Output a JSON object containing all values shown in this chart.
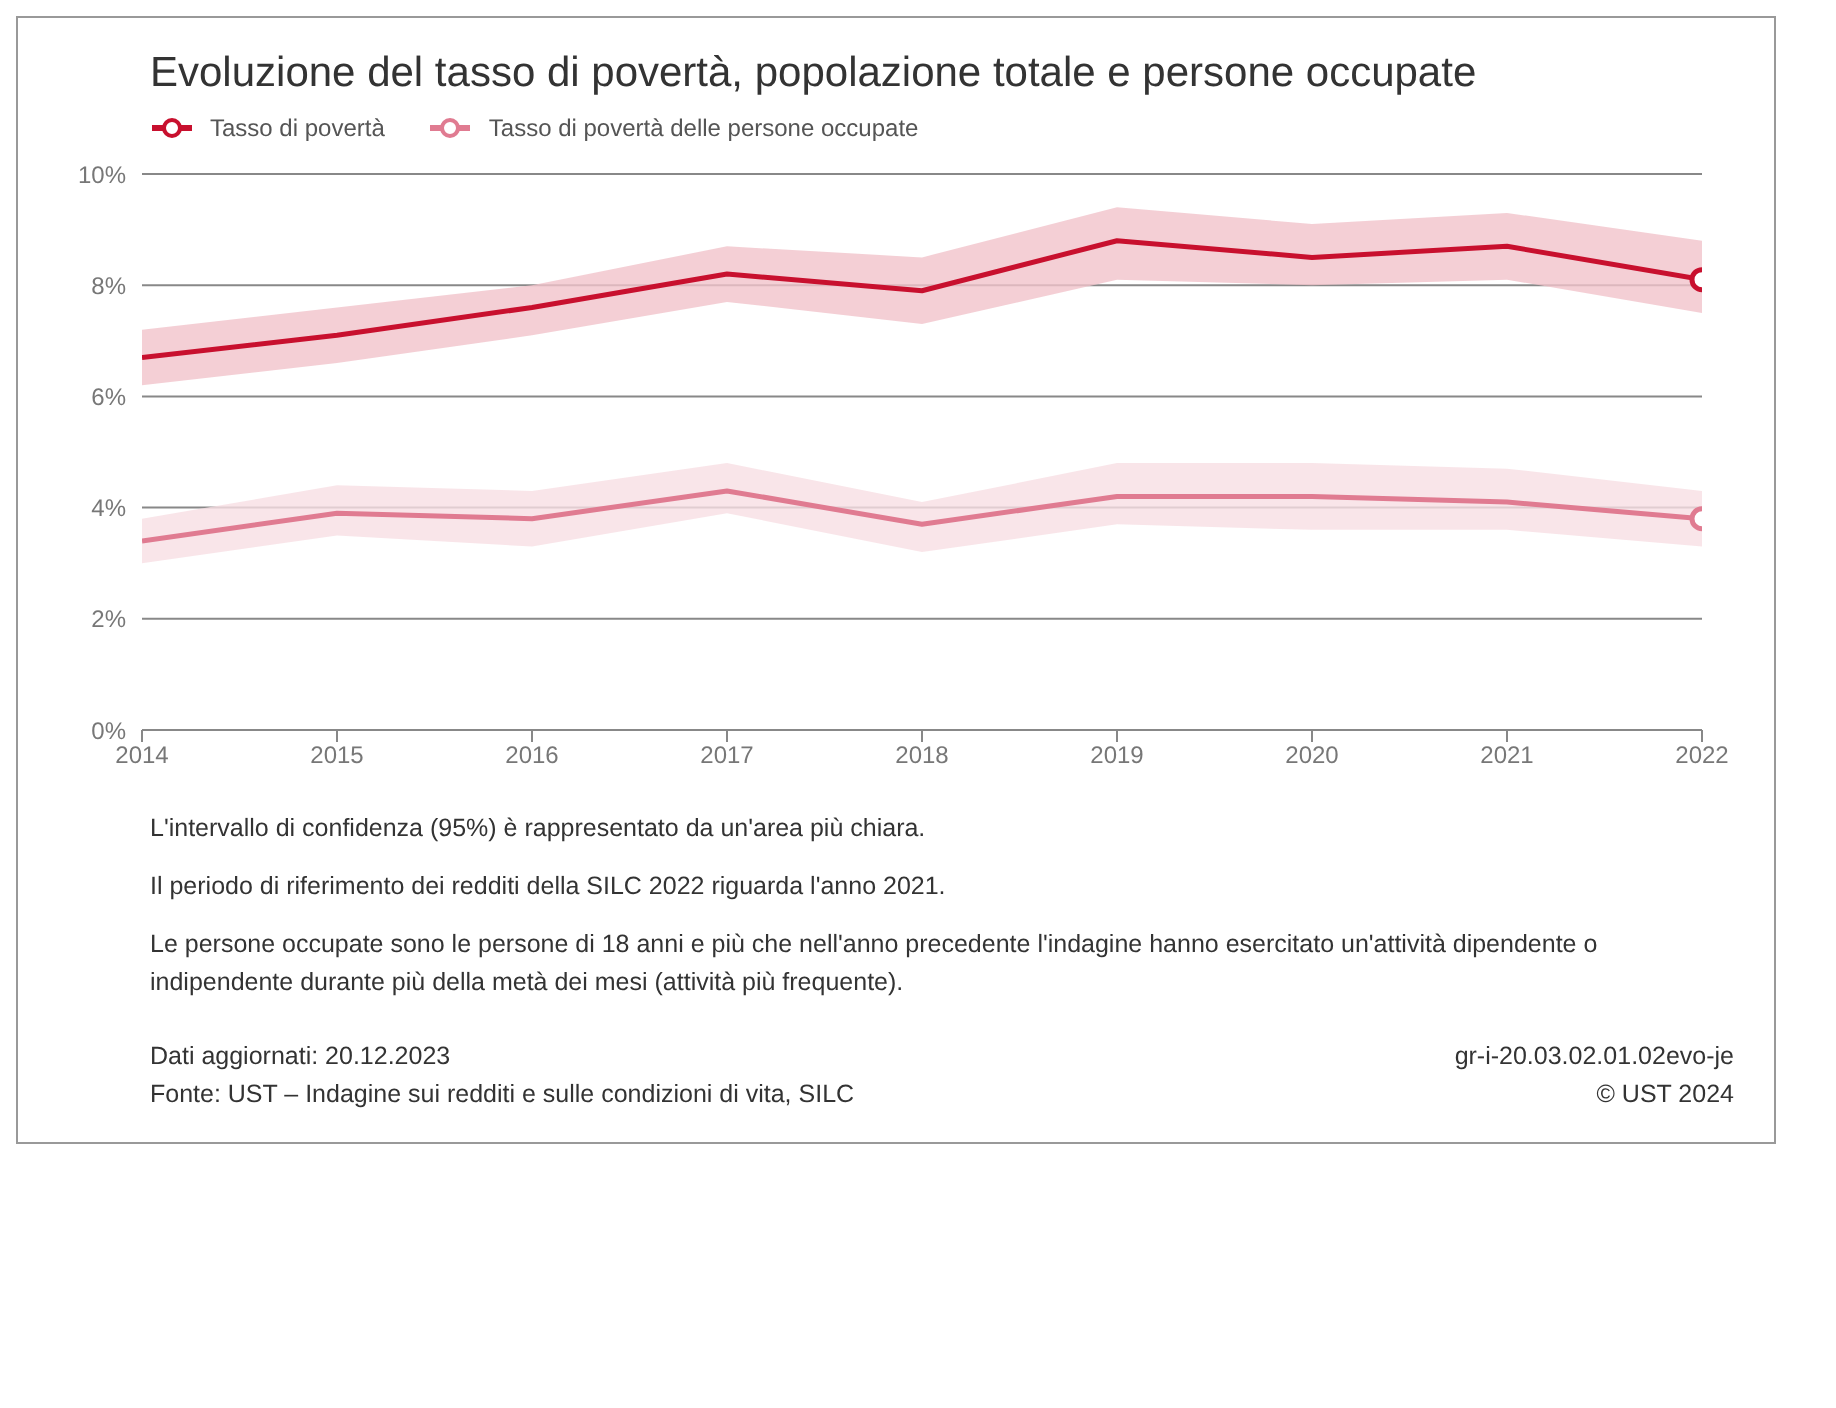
{
  "chart_data": {
    "type": "line",
    "title": "Evoluzione del tasso di povertà, popolazione totale e persone occupate",
    "x": [
      2014,
      2015,
      2016,
      2017,
      2018,
      2019,
      2020,
      2021,
      2022
    ],
    "xlim": [
      2014,
      2022
    ],
    "xticks": [
      2014,
      2015,
      2016,
      2017,
      2018,
      2019,
      2020,
      2021,
      2022
    ],
    "ylim": [
      0,
      10
    ],
    "yticks": [
      {
        "value": 0,
        "label": "0%"
      },
      {
        "value": 2,
        "label": "2%"
      },
      {
        "value": 4,
        "label": "4%"
      },
      {
        "value": 6,
        "label": "6%"
      },
      {
        "value": 8,
        "label": "8%"
      },
      {
        "value": 10,
        "label": "10%"
      }
    ],
    "grid": "y",
    "legend": "top left",
    "line_style": "solid",
    "series": [
      {
        "name": "Tasso di povertà",
        "color": "#c8102e",
        "values": [
          6.7,
          7.1,
          7.6,
          8.2,
          7.9,
          8.8,
          8.5,
          8.7,
          8.1
        ],
        "lower": [
          6.2,
          6.6,
          7.1,
          7.7,
          7.3,
          8.1,
          8.0,
          8.1,
          7.5
        ],
        "upper": [
          7.2,
          7.6,
          8.0,
          8.7,
          8.5,
          9.4,
          9.1,
          9.3,
          8.8
        ]
      },
      {
        "name": "Tasso di povertà delle persone occupate",
        "color": "#e07b91",
        "values": [
          3.4,
          3.9,
          3.8,
          4.3,
          3.7,
          4.2,
          4.2,
          4.1,
          3.8
        ],
        "lower": [
          3.0,
          3.5,
          3.3,
          3.9,
          3.2,
          3.7,
          3.6,
          3.6,
          3.3
        ],
        "upper": [
          3.8,
          4.4,
          4.3,
          4.8,
          4.1,
          4.8,
          4.8,
          4.7,
          4.3
        ]
      }
    ],
    "annotations": [
      "L'intervallo di confidenza (95%) è rappresentato da un'area più chiara.",
      "Il periodo di riferimento dei redditi della SILC 2022 riguarda l'anno 2021.",
      "Le persone occupate sono le persone di 18 anni e più che nell'anno precedente l'indagine hanno esercitato un'attività dipendente o indipendente durante più della metà dei mesi (attività più frequente).",
      "Dati aggiornati: 20.12.2023",
      "Fonte: UST – Indagine sui redditi e sulle condizioni di vita, SILC",
      "gr-i-20.03.02.01.02evo-je",
      "© UST 2024"
    ]
  }
}
